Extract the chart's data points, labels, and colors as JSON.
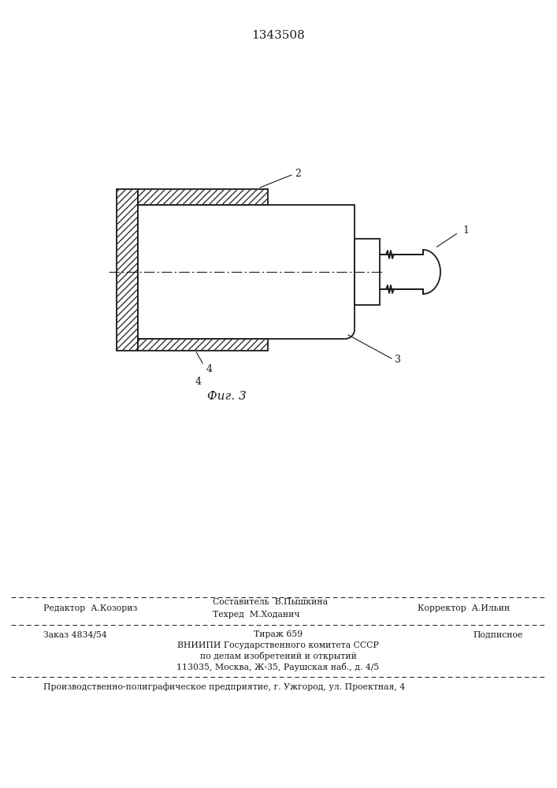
{
  "patent_number": "1343508",
  "fig_label": "Фиг. 3",
  "bg_color": "#ffffff",
  "line_color": "#1a1a1a",
  "footer_editor": "Редактор  А.Козориз",
  "footer_composer": "Составитель  В.Пышкина",
  "footer_techred": "Техред  М.Ходанич",
  "footer_corrector": "Корректор  А.Ильин",
  "footer_order": "Заказ 4834/54",
  "footer_tirazh": "Тираж 659",
  "footer_podpisnoe": "Подписное",
  "footer_vniipи": "ВНИИПИ Государственного комитета СССР",
  "footer_po_delam": "по делам изобретений и открытий",
  "footer_address": "113035, Москва, Ж-35, Раушская наб., д. 4/5",
  "footer_production": "Производственно-полиграфическое предприятие, г. Ужгород, ул. Проектная, 4"
}
